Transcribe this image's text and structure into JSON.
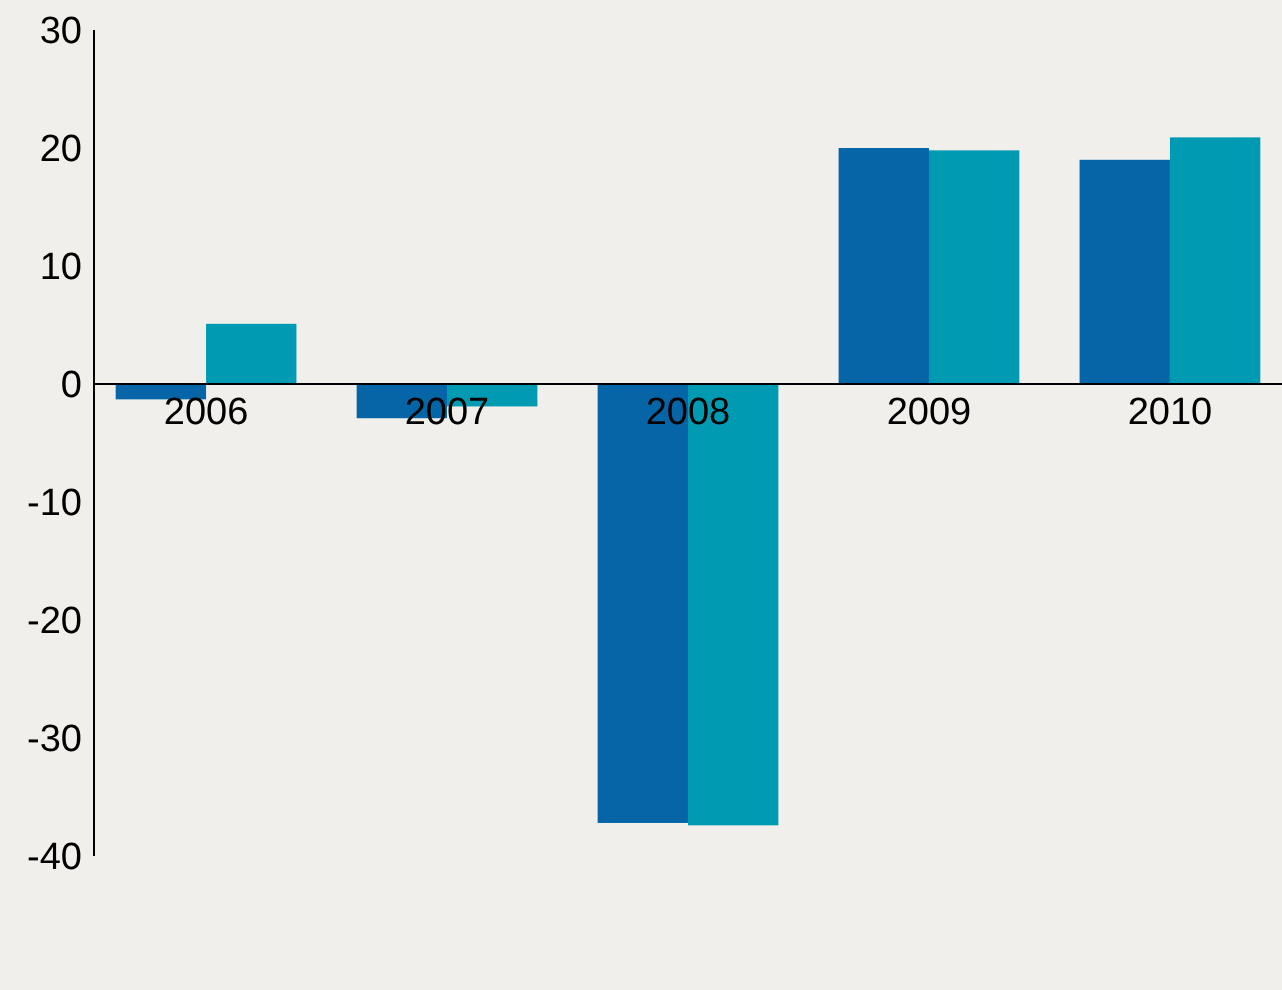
{
  "chart_data": {
    "type": "bar",
    "categories": [
      "2006",
      "2007",
      "2008",
      "2009",
      "2010"
    ],
    "series": [
      {
        "color": "#0565a6",
        "values": [
          -1.3,
          -2.9,
          -37.2,
          20,
          19
        ]
      },
      {
        "color": "#009bb2",
        "values": [
          5.1,
          -1.9,
          -37.4,
          19.8,
          20.9
        ]
      }
    ],
    "ylim": [
      -40,
      30
    ],
    "yticks": [
      -40,
      -30,
      -20,
      -10,
      0,
      10,
      20,
      30
    ],
    "grid": false,
    "legend": false
  }
}
